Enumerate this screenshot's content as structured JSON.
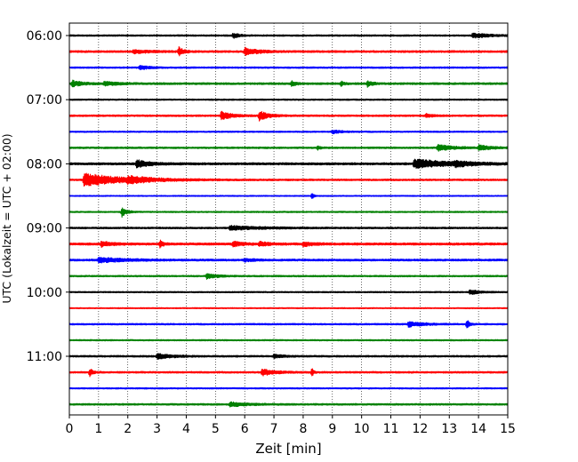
{
  "chart_data": {
    "type": "line",
    "subtype": "helicorder",
    "xlabel": "Zeit  [min]",
    "ylabel": "UTC (Lokalzeit = UTC + 02:00)",
    "xlim": [
      0,
      15
    ],
    "x_ticks": [
      0,
      1,
      2,
      3,
      4,
      5,
      6,
      7,
      8,
      9,
      10,
      11,
      12,
      13,
      14,
      15
    ],
    "x_tick_labels": [
      "0",
      "1",
      "2",
      "3",
      "4",
      "5",
      "6",
      "7",
      "8",
      "9",
      "10",
      "11",
      "12",
      "13",
      "14",
      "15"
    ],
    "y_tick_labels": [
      "06:00",
      "07:00",
      "08:00",
      "09:00",
      "10:00",
      "11:00"
    ],
    "y_tick_rows": [
      0,
      4,
      8,
      12,
      16,
      20
    ],
    "vertical_grid": "dotted",
    "series": [
      {
        "color": "#000000",
        "noise": 0.2,
        "events": [
          {
            "t": 5.6,
            "amp": 0.6,
            "dur": 0.2
          },
          {
            "t": 13.8,
            "amp": 0.55,
            "dur": 0.6
          }
        ]
      },
      {
        "color": "#ff0000",
        "noise": 0.25,
        "events": [
          {
            "t": 3.75,
            "amp": 1.0,
            "dur": 0.15
          },
          {
            "t": 6.0,
            "amp": 0.9,
            "dur": 0.4
          },
          {
            "t": 2.2,
            "amp": 0.4,
            "dur": 0.5
          }
        ]
      },
      {
        "color": "#0000ff",
        "noise": 0.2,
        "events": [
          {
            "t": 2.4,
            "amp": 0.5,
            "dur": 0.3
          }
        ]
      },
      {
        "color": "#008000",
        "noise": 0.25,
        "events": [
          {
            "t": 0.1,
            "amp": 0.7,
            "dur": 0.3
          },
          {
            "t": 1.2,
            "amp": 0.4,
            "dur": 0.5
          },
          {
            "t": 7.6,
            "amp": 0.6,
            "dur": 0.15
          },
          {
            "t": 10.2,
            "amp": 0.7,
            "dur": 0.15
          },
          {
            "t": 9.3,
            "amp": 0.5,
            "dur": 0.1
          }
        ]
      },
      {
        "color": "#000000",
        "noise": 0.18,
        "events": []
      },
      {
        "color": "#ff0000",
        "noise": 0.22,
        "events": [
          {
            "t": 5.2,
            "amp": 1.1,
            "dur": 0.3
          },
          {
            "t": 6.5,
            "amp": 1.1,
            "dur": 0.3
          },
          {
            "t": 12.2,
            "amp": 0.4,
            "dur": 0.2
          }
        ]
      },
      {
        "color": "#0000ff",
        "noise": 0.18,
        "events": [
          {
            "t": 9.0,
            "amp": 0.4,
            "dur": 0.3
          }
        ]
      },
      {
        "color": "#008000",
        "noise": 0.22,
        "events": [
          {
            "t": 8.5,
            "amp": 0.4,
            "dur": 0.1
          },
          {
            "t": 12.6,
            "amp": 0.7,
            "dur": 0.5
          },
          {
            "t": 14.0,
            "amp": 0.6,
            "dur": 0.4
          }
        ]
      },
      {
        "color": "#000000",
        "noise": 0.28,
        "events": [
          {
            "t": 2.3,
            "amp": 0.9,
            "dur": 0.4
          },
          {
            "t": 11.8,
            "amp": 1.1,
            "dur": 1.1
          },
          {
            "t": 13.2,
            "amp": 0.5,
            "dur": 0.4
          }
        ]
      },
      {
        "color": "#ff0000",
        "noise": 0.22,
        "events": [
          {
            "t": 0.5,
            "amp": 1.6,
            "dur": 1.2
          },
          {
            "t": 2.0,
            "amp": 0.5,
            "dur": 0.8
          }
        ]
      },
      {
        "color": "#0000ff",
        "noise": 0.15,
        "events": [
          {
            "t": 8.3,
            "amp": 0.8,
            "dur": 0.05
          }
        ]
      },
      {
        "color": "#008000",
        "noise": 0.18,
        "events": [
          {
            "t": 1.8,
            "amp": 1.2,
            "dur": 0.15
          }
        ]
      },
      {
        "color": "#000000",
        "noise": 0.22,
        "events": [
          {
            "t": 5.5,
            "amp": 0.5,
            "dur": 1.0
          }
        ]
      },
      {
        "color": "#ff0000",
        "noise": 0.28,
        "events": [
          {
            "t": 1.1,
            "amp": 0.6,
            "dur": 0.3
          },
          {
            "t": 3.1,
            "amp": 0.9,
            "dur": 0.1
          },
          {
            "t": 5.6,
            "amp": 0.6,
            "dur": 0.3
          },
          {
            "t": 6.5,
            "amp": 0.5,
            "dur": 0.3
          },
          {
            "t": 8.0,
            "amp": 0.5,
            "dur": 0.3
          }
        ]
      },
      {
        "color": "#0000ff",
        "noise": 0.25,
        "events": [
          {
            "t": 1.0,
            "amp": 0.6,
            "dur": 0.8
          },
          {
            "t": 6.0,
            "amp": 0.3,
            "dur": 0.3
          }
        ]
      },
      {
        "color": "#008000",
        "noise": 0.2,
        "events": [
          {
            "t": 4.7,
            "amp": 0.7,
            "dur": 0.3
          }
        ]
      },
      {
        "color": "#000000",
        "noise": 0.18,
        "events": [
          {
            "t": 13.7,
            "amp": 0.6,
            "dur": 0.3
          }
        ]
      },
      {
        "color": "#ff0000",
        "noise": 0.15,
        "events": []
      },
      {
        "color": "#0000ff",
        "noise": 0.2,
        "events": [
          {
            "t": 11.6,
            "amp": 0.6,
            "dur": 0.5
          },
          {
            "t": 13.6,
            "amp": 1.3,
            "dur": 0.08
          }
        ]
      },
      {
        "color": "#008000",
        "noise": 0.18,
        "events": []
      },
      {
        "color": "#000000",
        "noise": 0.22,
        "events": [
          {
            "t": 3.0,
            "amp": 0.6,
            "dur": 0.5
          },
          {
            "t": 7.0,
            "amp": 0.4,
            "dur": 0.3
          }
        ]
      },
      {
        "color": "#ff0000",
        "noise": 0.22,
        "events": [
          {
            "t": 0.7,
            "amp": 1.0,
            "dur": 0.1
          },
          {
            "t": 6.6,
            "amp": 0.8,
            "dur": 0.4
          },
          {
            "t": 8.3,
            "amp": 1.1,
            "dur": 0.05
          }
        ]
      },
      {
        "color": "#0000ff",
        "noise": 0.18,
        "events": []
      },
      {
        "color": "#008000",
        "noise": 0.22,
        "events": [
          {
            "t": 5.5,
            "amp": 0.5,
            "dur": 0.6
          }
        ]
      }
    ]
  }
}
